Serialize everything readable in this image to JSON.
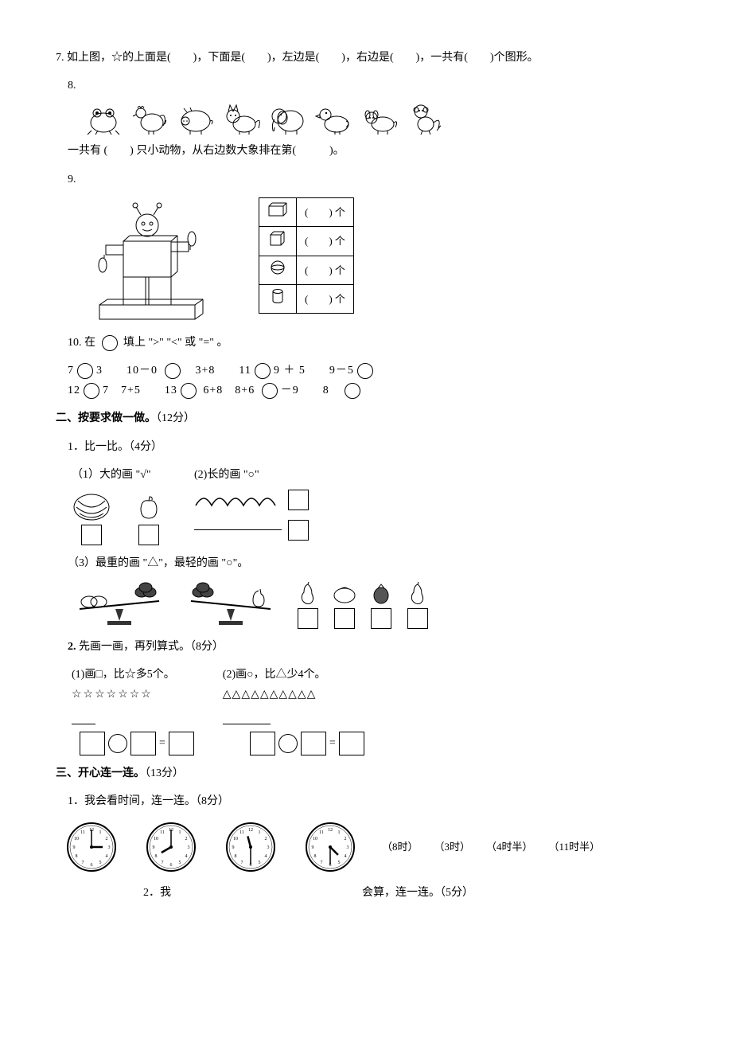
{
  "q7": "7. 如上图，☆的上面是(　　)，下面是(　　)，左边是(　　)，右边是(　　)，一共有(　　)个图形。",
  "q8": {
    "num": "8.",
    "text": "一共有 (　　) 只小动物，从右边数大象排在第(　　　)。"
  },
  "q9": {
    "num": "9.",
    "cells": [
      "(　　) 个",
      "(　　) 个",
      "(　　) 个",
      "(　　) 个"
    ]
  },
  "q10": {
    "title": "10. 在",
    "title2": "填上 \">\" \"<\" 或 \"=\" 。",
    "row1_a": "7",
    "row1_b": "3　　10－0",
    "row1_c": "3+8　　11",
    "row1_d": "9 ＋ 5　　9－5",
    "row2_a": "12",
    "row2_b": "7　7+5　　13",
    "row2_c": "6+8　8+6",
    "row2_d": "－9　　8"
  },
  "s2": {
    "title": "二、按要求做一做。",
    "pts": "（12分）",
    "q1": "1．比一比。（4分）",
    "q1_1": "（1）大的画 \"√\"",
    "q1_2": "(2)长的画 \"○\"",
    "q1_3": "（3）最重的画 \"△\"，最轻的画 \"○\"。",
    "q2": "2. 先画一画，再列算式。（8分）",
    "q2_1": "(1)画□，比☆多5个。",
    "q2_1s": "☆☆☆☆☆☆☆",
    "q2_2": "(2)画○，比△少4个。",
    "q2_2s": "△△△△△△△△△△"
  },
  "s3": {
    "title": "三、开心连一连。",
    "pts": "（13分）",
    "q1": "1．我会看时间，连一连。（8分）",
    "times": [
      "（8时）",
      "（3时）",
      "（4时半）",
      "（11时半）"
    ],
    "q2a": "2．我",
    "q2b": "会算，连一连。（5分）"
  },
  "colors": {
    "stroke": "#000000",
    "bg": "#ffffff"
  },
  "clocks": [
    {
      "h": 3,
      "m": 0
    },
    {
      "h": 8,
      "m": 0
    },
    {
      "h": 11,
      "m": 30
    },
    {
      "h": 4,
      "m": 30
    }
  ]
}
